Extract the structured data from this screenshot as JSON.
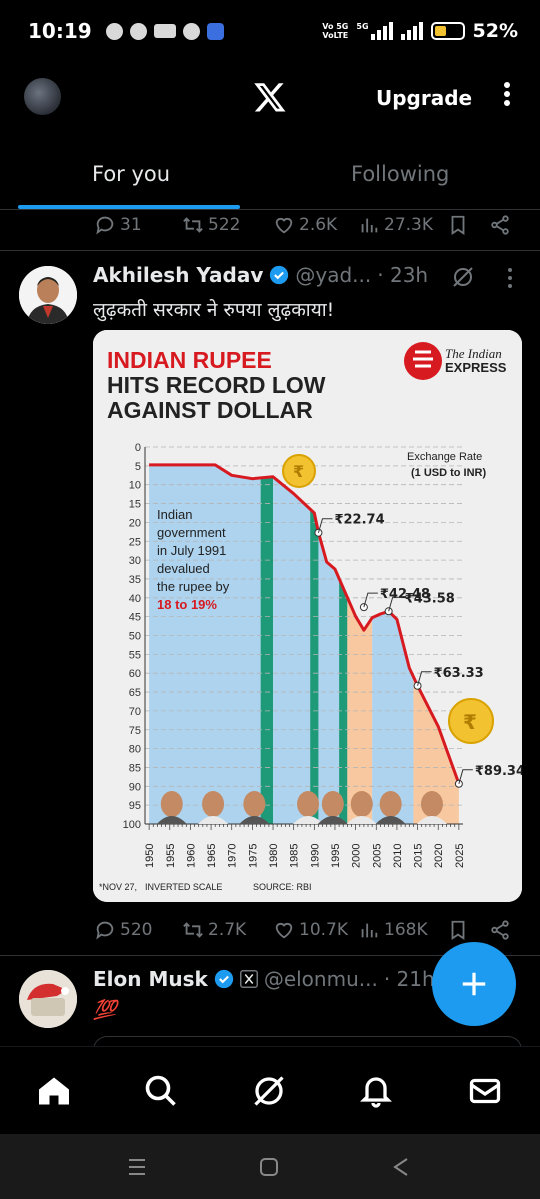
{
  "status_bar": {
    "time": "10:19",
    "network_top": "Vo 5G",
    "network_bottom": "VoLTE",
    "network_5g": "5G",
    "battery_pct": "52%",
    "battery_level": 0.52
  },
  "header": {
    "logo": "X",
    "upgrade_label": "Upgrade"
  },
  "tabs": [
    {
      "label": "For you",
      "active": true
    },
    {
      "label": "Following",
      "active": false
    }
  ],
  "prev_post_actions": {
    "replies": "31",
    "reposts": "522",
    "likes": "2.6K",
    "views": "27.3K"
  },
  "post1": {
    "name": "Akhilesh Yadav",
    "handle": "@yad...",
    "time": "· 23h",
    "text": "लुढ़कती सरकार ने रुपया लुढ़काया!",
    "actions": {
      "replies": "520",
      "reposts": "2.7K",
      "likes": "10.7K",
      "views": "168K"
    }
  },
  "chart_data": {
    "type": "line",
    "title_line1": "INDIAN RUPEE",
    "title_line2": "HITS RECORD LOW",
    "title_line3": "AGAINST DOLLAR",
    "brand_line1": "The Indian",
    "brand_line2": "EXPRESS",
    "legend_title": "Exchange Rate",
    "legend_sub": "(1 USD to INR)",
    "x": [
      1950,
      1966,
      1970,
      1975,
      1980,
      1985,
      1990,
      1991,
      1993,
      1995,
      2000,
      2002,
      2004,
      2006,
      2008,
      2010,
      2013,
      2015,
      2020,
      2025
    ],
    "y": [
      4.76,
      4.76,
      7.5,
      8.4,
      7.9,
      12.4,
      17.5,
      22.74,
      30.5,
      32.4,
      44.9,
      48.6,
      45.3,
      44.3,
      43.58,
      45.7,
      58.6,
      63.33,
      74.1,
      89.34
    ],
    "y_ticks": [
      0,
      5,
      10,
      15,
      20,
      25,
      30,
      35,
      40,
      45,
      50,
      55,
      60,
      65,
      70,
      75,
      80,
      85,
      90,
      95,
      100
    ],
    "x_ticks": [
      1950,
      1955,
      1960,
      1965,
      1970,
      1975,
      1980,
      1985,
      1990,
      1995,
      2000,
      2005,
      2010,
      2015,
      2020,
      2025
    ],
    "ylim": [
      0,
      100
    ],
    "y_inverted": true,
    "annotations": [
      "₹22.74",
      "₹42.48",
      "₹43.58",
      "₹63.33",
      "₹89.34"
    ],
    "note_text": [
      "Indian",
      "government",
      "in July 1991",
      "devalued",
      "the rupee by"
    ],
    "note_highlight": "18 to 19%",
    "footer_left": "*NOV 27,",
    "footer_mid": "INVERTED SCALE",
    "footer_right": "SOURCE: RBI",
    "colors": {
      "line": "#d71920",
      "congress_bg": "#aed3ee",
      "bjp_bg": "#f8c9a0",
      "janata_band": "#1e9a78"
    }
  },
  "post2": {
    "name": "Elon Musk",
    "handle": "@elonmu...",
    "time": "· 21h",
    "text": "💯"
  },
  "colors": {
    "accent": "#1d9bf0",
    "muted": "#71767b"
  }
}
